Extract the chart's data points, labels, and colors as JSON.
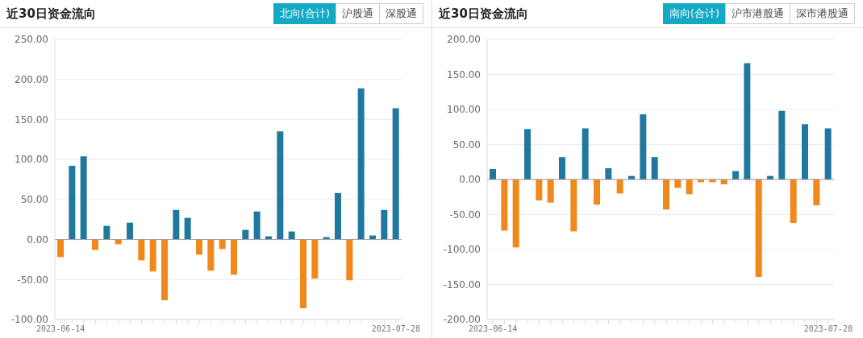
{
  "chart_data": [
    {
      "type": "bar",
      "title": "近30日资金流向",
      "annotations": [
        "北向(合计)",
        "沪股通",
        "深股通"
      ],
      "categories": [
        "2023-06-14",
        null,
        null,
        null,
        null,
        null,
        null,
        null,
        null,
        null,
        null,
        null,
        null,
        null,
        null,
        null,
        null,
        null,
        null,
        null,
        null,
        null,
        null,
        null,
        null,
        null,
        null,
        null,
        null,
        "2023-07-28"
      ],
      "values": [
        -22,
        92,
        104,
        -13,
        17,
        -6,
        21,
        -26,
        -40,
        -76,
        37,
        27,
        -19,
        -39,
        -12,
        -44,
        12,
        35,
        4,
        135,
        10,
        -86,
        -49,
        3,
        58,
        -51,
        189,
        5,
        37,
        164
      ],
      "colors": [
        "#f0891a",
        "#20789f",
        "#20789f",
        "#f0891a",
        "#20789f",
        "#f0891a",
        "#20789f",
        "#f0891a",
        "#f0891a",
        "#f0891a",
        "#20789f",
        "#20789f",
        "#f0891a",
        "#f0891a",
        "#f0891a",
        "#f0891a",
        "#20789f",
        "#20789f",
        "#20789f",
        "#20789f",
        "#20789f",
        "#f0891a",
        "#f0891a",
        "#20789f",
        "#20789f",
        "#f0891a",
        "#20789f",
        "#20789f",
        "#20789f",
        "#20789f"
      ],
      "ylim": [
        -100,
        250
      ],
      "yticks": [
        {
          "value": -100,
          "label": "-100.00"
        },
        {
          "value": -50,
          "label": "-50.00"
        },
        {
          "value": 0,
          "label": "0.00"
        },
        {
          "value": 50,
          "label": "50.00"
        },
        {
          "value": 100,
          "label": "100.00"
        },
        {
          "value": 150,
          "label": "150.00"
        },
        {
          "value": 200,
          "label": "200.00"
        },
        {
          "value": 250,
          "label": "250.00"
        }
      ],
      "grid": "y",
      "legend": false
    },
    {
      "type": "bar",
      "title": "近30日资金流向",
      "annotations": [
        "南向(合计)",
        "沪市港股通",
        "深市港股通"
      ],
      "categories": [
        "2023-06-14",
        null,
        null,
        null,
        null,
        null,
        null,
        null,
        null,
        null,
        null,
        null,
        null,
        null,
        null,
        null,
        null,
        null,
        null,
        null,
        null,
        null,
        null,
        null,
        null,
        null,
        null,
        null,
        null,
        "2023-07-28"
      ],
      "values": [
        15,
        -73,
        -97,
        72,
        -30,
        -33,
        32,
        -74,
        73,
        -36,
        16,
        -20,
        5,
        93,
        32,
        -43,
        -12,
        -21,
        -4,
        -4,
        -7,
        12,
        166,
        -139,
        5,
        98,
        -62,
        79,
        -37,
        73
      ],
      "colors": [
        "#20789f",
        "#f0891a",
        "#f0891a",
        "#20789f",
        "#f0891a",
        "#f0891a",
        "#20789f",
        "#f0891a",
        "#20789f",
        "#f0891a",
        "#20789f",
        "#f0891a",
        "#20789f",
        "#20789f",
        "#20789f",
        "#f0891a",
        "#f0891a",
        "#f0891a",
        "#f0891a",
        "#f0891a",
        "#f0891a",
        "#20789f",
        "#20789f",
        "#f0891a",
        "#20789f",
        "#20789f",
        "#f0891a",
        "#20789f",
        "#f0891a",
        "#20789f"
      ],
      "ylim": [
        -200,
        200
      ],
      "yticks": [
        {
          "value": -200,
          "label": "-200.00"
        },
        {
          "value": -150,
          "label": "-150.00"
        },
        {
          "value": -100,
          "label": "-100.00"
        },
        {
          "value": -50,
          "label": "-50.00"
        },
        {
          "value": 0,
          "label": "0.00"
        },
        {
          "value": 50,
          "label": "50.00"
        },
        {
          "value": 100,
          "label": "100.00"
        },
        {
          "value": 150,
          "label": "150.00"
        },
        {
          "value": 200,
          "label": "200.00"
        }
      ],
      "grid": "y",
      "legend": false
    }
  ]
}
